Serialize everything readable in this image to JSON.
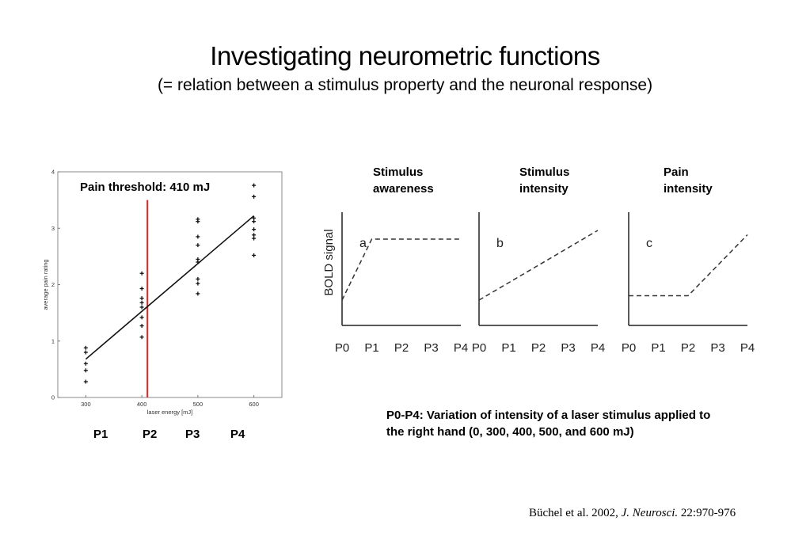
{
  "title": "Investigating neurometric functions",
  "subtitle": "(= relation between a stimulus property and the neuronal response)",
  "threshold_label": "Pain threshold: 410 mJ",
  "p_labels": [
    "P1",
    "P2",
    "P3",
    "P4"
  ],
  "panel_headers": [
    {
      "line1": "Stimulus",
      "line2": "awareness"
    },
    {
      "line1": "Stimulus",
      "line2": "intensity"
    },
    {
      "line1": "Pain",
      "line2": "intensity"
    }
  ],
  "note": "P0-P4: Variation of intensity of a laser stimulus applied to the right hand (0, 300, 400, 500, and 600 mJ)",
  "citation": {
    "authors": "Büchel et al. 2002, ",
    "journal": "J. Neurosci.",
    "ref": " 22:970-976"
  },
  "chart_data": [
    {
      "type": "scatter",
      "xlabel": "laser energy [mJ]",
      "ylabel": "average pain rating",
      "xlim": [
        250,
        650
      ],
      "ylim": [
        0,
        4
      ],
      "xticks": [
        300,
        400,
        500,
        600
      ],
      "yticks": [
        0,
        1,
        2,
        3,
        4
      ],
      "threshold": 410,
      "threshold_color": "#e32222",
      "fit_line": [
        [
          300,
          0.68
        ],
        [
          600,
          3.22
        ]
      ],
      "points": [
        [
          300,
          0.88
        ],
        [
          300,
          0.8
        ],
        [
          300,
          0.6
        ],
        [
          300,
          0.48
        ],
        [
          300,
          0.28
        ],
        [
          400,
          2.2
        ],
        [
          400,
          1.93
        ],
        [
          400,
          1.76
        ],
        [
          400,
          1.68
        ],
        [
          400,
          1.6
        ],
        [
          400,
          1.42
        ],
        [
          400,
          1.27
        ],
        [
          400,
          1.07
        ],
        [
          500,
          3.16
        ],
        [
          500,
          3.12
        ],
        [
          500,
          2.85
        ],
        [
          500,
          2.7
        ],
        [
          500,
          2.45
        ],
        [
          500,
          2.4
        ],
        [
          500,
          2.1
        ],
        [
          500,
          2.02
        ],
        [
          500,
          1.84
        ],
        [
          600,
          3.76
        ],
        [
          600,
          3.56
        ],
        [
          600,
          3.18
        ],
        [
          600,
          3.12
        ],
        [
          600,
          2.98
        ],
        [
          600,
          2.88
        ],
        [
          600,
          2.82
        ],
        [
          600,
          2.52
        ]
      ]
    },
    {
      "type": "line",
      "panel": "a",
      "ylabel": "BOLD signal",
      "categories": [
        "P0",
        "P1",
        "P2",
        "P3",
        "P4"
      ],
      "values": [
        0.2,
        0.9,
        0.9,
        0.9,
        0.9
      ]
    },
    {
      "type": "line",
      "panel": "b",
      "categories": [
        "P0",
        "P1",
        "P2",
        "P3",
        "P4"
      ],
      "values": [
        0.2,
        0.4,
        0.6,
        0.8,
        1.0
      ]
    },
    {
      "type": "line",
      "panel": "c",
      "categories": [
        "P0",
        "P1",
        "P2",
        "P3",
        "P4"
      ],
      "values": [
        0.25,
        0.25,
        0.25,
        0.6,
        0.95
      ]
    }
  ]
}
